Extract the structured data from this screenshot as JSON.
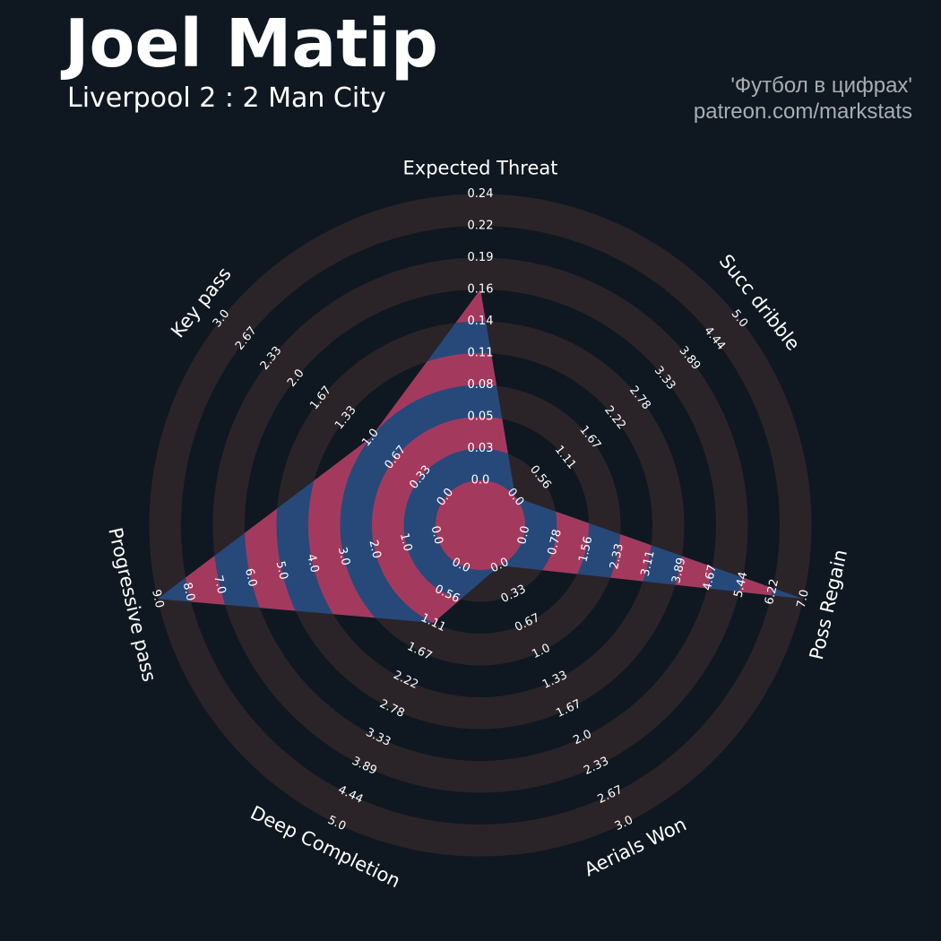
{
  "header": {
    "title": "Joel Matip",
    "subtitle": "Liverpool 2 : 2 Man City",
    "credit_line1": "'Футбол в цифрах'",
    "credit_line2": "patreon.com/markstats"
  },
  "colors": {
    "background": "#0f1820",
    "ring": "#2a2429",
    "fill_blue": "#27497a",
    "fill_pink": "#a33a5e",
    "text": "#ffffff"
  },
  "chart_data": {
    "type": "radar",
    "player": "Joel Matip",
    "params": [
      "Expected Threat",
      "Succ dribble",
      "Poss Regain",
      "Aerials Won",
      "Deep Completion",
      "Progressive pass",
      "Key pass"
    ],
    "values": [
      0.16,
      0.0,
      7.0,
      0.0,
      1.11,
      9.0,
      1.0
    ],
    "ranges": [
      [
        0.0,
        0.24
      ],
      [
        0.0,
        5.0
      ],
      [
        0.0,
        7.0
      ],
      [
        0.0,
        3.0
      ],
      [
        0.0,
        5.0
      ],
      [
        0.0,
        9.0
      ],
      [
        0.0,
        3.0
      ]
    ],
    "tick_labels": [
      [
        "0.0",
        "0.03",
        "0.05",
        "0.08",
        "0.11",
        "0.14",
        "0.16",
        "0.19",
        "0.22",
        "0.24"
      ],
      [
        "0.0",
        "0.56",
        "1.11",
        "1.67",
        "2.22",
        "2.78",
        "3.33",
        "3.89",
        "4.44",
        "5.0"
      ],
      [
        "0.0",
        "0.78",
        "1.56",
        "2.33",
        "3.11",
        "3.89",
        "4.67",
        "5.44",
        "6.22",
        "7.0"
      ],
      [
        "0.0",
        "0.33",
        "0.67",
        "1.0",
        "1.33",
        "1.67",
        "2.0",
        "2.33",
        "2.67",
        "3.0"
      ],
      [
        "0.0",
        "0.56",
        "1.11",
        "1.67",
        "2.22",
        "2.78",
        "3.33",
        "3.89",
        "4.44",
        "5.0"
      ],
      [
        "0.0",
        "1.0",
        "2.0",
        "3.0",
        "4.0",
        "5.0",
        "6.0",
        "7.0",
        "8.0",
        "9.0"
      ],
      [
        "0.0",
        "0.33",
        "0.67",
        "1.0",
        "1.33",
        "1.67",
        "2.0",
        "2.33",
        "2.67",
        "3.0"
      ]
    ]
  }
}
